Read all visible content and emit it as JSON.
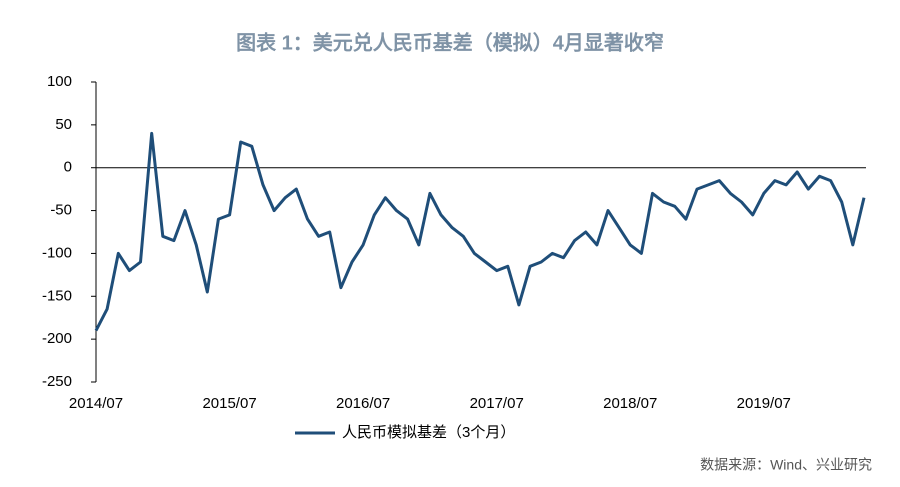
{
  "chart_data": {
    "type": "line",
    "title": "图表 1：美元兑人民币基差（模拟）4月显著收窄",
    "source": "数据来源：Wind、兴业研究",
    "categories": [
      "2014/07",
      null,
      null,
      null,
      null,
      null,
      null,
      null,
      null,
      null,
      null,
      null,
      "2015/07",
      null,
      null,
      null,
      null,
      null,
      null,
      null,
      null,
      null,
      null,
      null,
      "2016/07",
      null,
      null,
      null,
      null,
      null,
      null,
      null,
      null,
      null,
      null,
      null,
      "2017/07",
      null,
      null,
      null,
      null,
      null,
      null,
      null,
      null,
      null,
      null,
      null,
      "2018/07",
      null,
      null,
      null,
      null,
      null,
      null,
      null,
      null,
      null,
      null,
      null,
      "2019/07",
      null,
      null,
      null,
      null,
      null,
      null,
      null,
      null,
      null
    ],
    "series": [
      {
        "name": "人民币模拟基差（3个月）",
        "color": "#1f4e79",
        "values": [
          -190,
          -165,
          -100,
          -120,
          -110,
          40,
          -80,
          -85,
          -50,
          -90,
          -145,
          -60,
          -55,
          30,
          25,
          -20,
          -50,
          -35,
          -25,
          -60,
          -80,
          -75,
          -140,
          -110,
          -90,
          -55,
          -35,
          -50,
          -60,
          -90,
          -30,
          -55,
          -70,
          -80,
          -100,
          -110,
          -120,
          -115,
          -160,
          -115,
          -110,
          -100,
          -105,
          -85,
          -75,
          -90,
          -50,
          -70,
          -90,
          -100,
          -30,
          -40,
          -45,
          -60,
          -25,
          -20,
          -15,
          -30,
          -40,
          -55,
          -30,
          -15,
          -20,
          -5,
          -25,
          -10,
          -15,
          -40,
          -90,
          -35
        ]
      }
    ],
    "ylim": [
      -250,
      100
    ],
    "yticks": [
      -250,
      -200,
      -150,
      -100,
      -50,
      0,
      50,
      100
    ],
    "legend": "bottom"
  }
}
